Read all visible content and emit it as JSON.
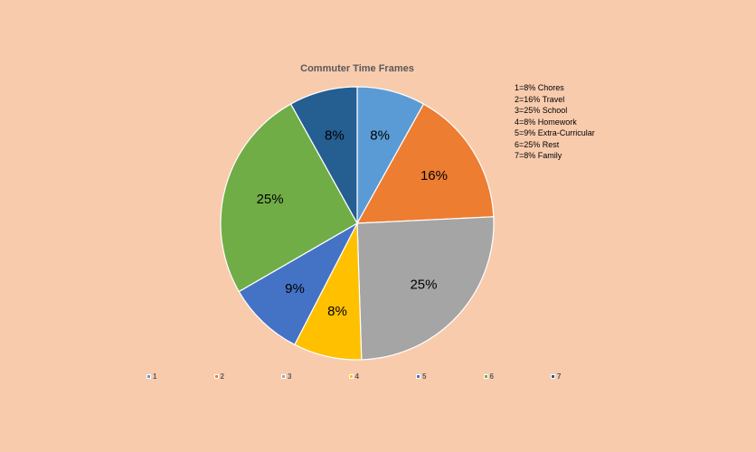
{
  "chart_data": {
    "type": "pie",
    "title": "Commuter Time Frames",
    "categories": [
      "1",
      "2",
      "3",
      "4",
      "5",
      "6",
      "7"
    ],
    "values": [
      8,
      16,
      25,
      8,
      9,
      25,
      8
    ],
    "data_labels": [
      "8%",
      "16%",
      "25%",
      "8%",
      "9%",
      "25%",
      "8%"
    ],
    "colors": [
      "#5B9BD5",
      "#ED7D31",
      "#A5A5A5",
      "#FFC000",
      "#4472C4",
      "#70AD47",
      "#255E91"
    ],
    "legend_position": "bottom",
    "notes": [
      "1=8% Chores",
      "2=16% Travel",
      "3=25% School",
      "4=8% Homework",
      "5=9% Extra-Curricular",
      "6=25% Rest",
      "7=8% Family"
    ]
  }
}
